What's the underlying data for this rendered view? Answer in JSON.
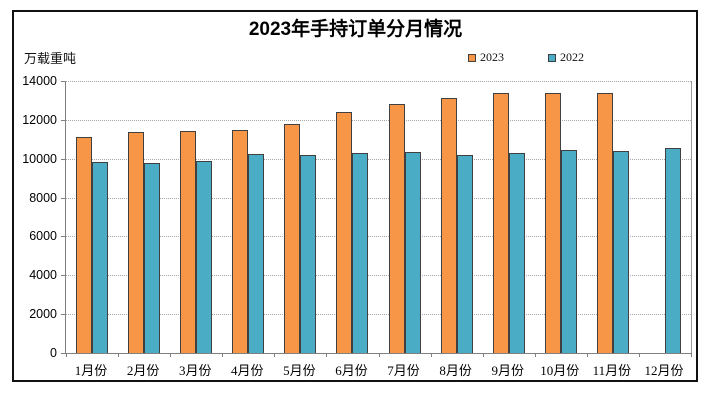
{
  "chart_data": {
    "type": "bar",
    "title": "2023年手持订单分月情况",
    "unit_label": "万载重吨",
    "categories": [
      "1月份",
      "2月份",
      "3月份",
      "4月份",
      "5月份",
      "6月份",
      "7月份",
      "8月份",
      "9月份",
      "10月份",
      "11月份",
      "12月份"
    ],
    "series": [
      {
        "name": "2023",
        "color": "#F79646",
        "values": [
          11100,
          11350,
          11450,
          11500,
          11800,
          12400,
          12800,
          13150,
          13400,
          13400,
          13400,
          null
        ]
      },
      {
        "name": "2022",
        "color": "#4BACC6",
        "values": [
          9830,
          9780,
          9890,
          10250,
          10200,
          10280,
          10350,
          10180,
          10280,
          10450,
          10400,
          10550
        ]
      }
    ],
    "ylim": [
      0,
      14000
    ],
    "ytick_step": 2000,
    "grid": "horizontal-dotted",
    "legend_position": "top-right-above-plot",
    "bar_border_color": "#404040",
    "gridline_color": "#a6a6a6",
    "axis_color": "#808080"
  }
}
